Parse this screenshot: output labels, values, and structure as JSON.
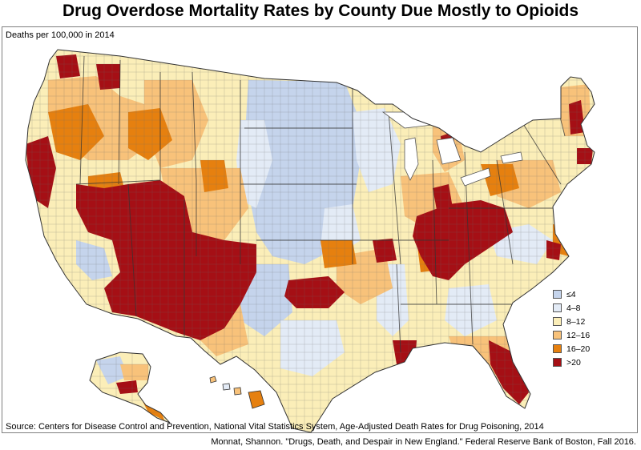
{
  "title": "Drug Overdose Mortality Rates by County Due Mostly to Opioids",
  "subtitle": "Deaths per 100,000 in 2014",
  "legend": {
    "items": [
      {
        "label": "≤4",
        "color": "#c5d4ec"
      },
      {
        "label": "4–8",
        "color": "#e3ebf6"
      },
      {
        "label": "8–12",
        "color": "#fbeeb8"
      },
      {
        "label": "12–16",
        "color": "#f8c27a"
      },
      {
        "label": "16–20",
        "color": "#e6800f"
      },
      {
        "label": ">20",
        "color": "#a50f15"
      }
    ]
  },
  "source": "Source: Centers for Disease Control and Prevention, National Vital Statistics System, Age-Adjusted Death Rates for Drug Poisoning, 2014",
  "citation": "Monnat, Shannon. \"Drugs, Death, and Despair in New England.\" Federal Reserve Bank of Boston, Fall 2016."
}
